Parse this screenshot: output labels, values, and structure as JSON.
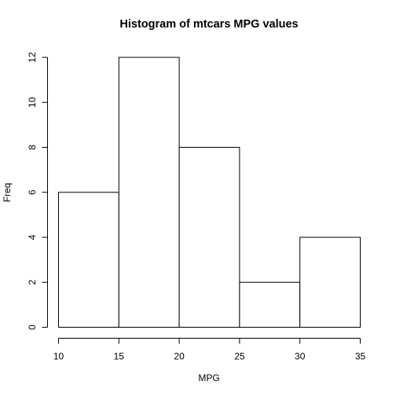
{
  "chart_data": {
    "type": "bar",
    "title": "Histogram of mtcars MPG values",
    "xlabel": "MPG",
    "ylabel": "Freq",
    "bins": [
      {
        "x0": 10,
        "x1": 15,
        "value": 6
      },
      {
        "x0": 15,
        "x1": 20,
        "value": 12
      },
      {
        "x0": 20,
        "x1": 25,
        "value": 8
      },
      {
        "x0": 25,
        "x1": 30,
        "value": 2
      },
      {
        "x0": 30,
        "x1": 35,
        "value": 4
      }
    ],
    "xlim": [
      10,
      35
    ],
    "ylim": [
      0,
      12
    ],
    "xticks": [
      10,
      15,
      20,
      25,
      30,
      35
    ],
    "yticks": [
      0,
      2,
      4,
      6,
      8,
      10,
      12
    ],
    "grid": false,
    "legend": "none"
  }
}
